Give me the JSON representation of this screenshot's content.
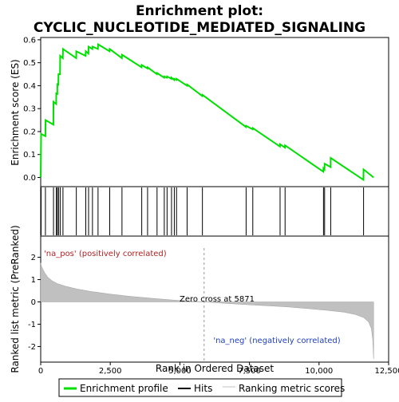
{
  "chart_data": {
    "type": "line",
    "title_line1": "Enrichment plot:",
    "title_line2": "CYCLIC_NUCLEOTIDE_MEDIATED_SIGNALING",
    "es_ylabel": "Enrichment score (ES)",
    "metric_ylabel": "Ranked list metric (PreRanked)",
    "xlabel": "Rank in Ordered Dataset",
    "xlim": [
      0,
      12500
    ],
    "es_ylim": [
      -0.04,
      0.61
    ],
    "metric_ylim": [
      -2.7,
      2.95
    ],
    "x_ticks": [
      0,
      2500,
      5000,
      7500,
      10000,
      12500
    ],
    "x_tick_labels": [
      "0",
      "2,500",
      "5,000",
      "7,500",
      "10,000",
      "12,500"
    ],
    "es_ticks": [
      0.0,
      0.1,
      0.2,
      0.3,
      0.4,
      0.5,
      0.6
    ],
    "es_tick_labels": [
      "0.0",
      "0.1",
      "0.2",
      "0.3",
      "0.4",
      "0.5",
      "0.6"
    ],
    "metric_ticks": [
      2,
      1,
      0,
      -1,
      -2
    ],
    "metric_tick_labels": [
      "2",
      "1",
      "0",
      "-1",
      "-2"
    ],
    "dataset_size": 11960,
    "zero_cross": 5871,
    "zero_cross_label": "Zero cross at 5871",
    "pos_label": "'na_pos' (positively correlated)",
    "neg_label": "'na_neg' (negatively correlated)",
    "legend": [
      "Enrichment profile",
      "Hits",
      "Ranking metric scores"
    ],
    "colors": {
      "enrichment": "#00e000",
      "hits": "#000000",
      "metric_fill": "#c0c0c0",
      "zero_line": "#c0c0c0",
      "bar_red_dark": "#e8001e",
      "bar_red_light": "#ffc8d8",
      "bar_blue_light": "#c8c8ff",
      "bar_blue_dark": "#1010c8"
    },
    "hits": [
      15,
      170,
      460,
      560,
      600,
      640,
      700,
      800,
      1280,
      1620,
      1720,
      1860,
      2060,
      2480,
      2920,
      3630,
      3840,
      4180,
      4440,
      4540,
      4700,
      4800,
      4880,
      5260,
      5810,
      7380,
      7620,
      8600,
      8780,
      10160,
      10200,
      10420,
      11600
    ],
    "es_profile": [
      [
        0,
        0.0
      ],
      [
        15,
        0.19
      ],
      [
        170,
        0.18
      ],
      [
        175,
        0.25
      ],
      [
        455,
        0.23
      ],
      [
        460,
        0.33
      ],
      [
        555,
        0.32
      ],
      [
        560,
        0.37
      ],
      [
        595,
        0.36
      ],
      [
        600,
        0.41
      ],
      [
        635,
        0.4
      ],
      [
        640,
        0.45
      ],
      [
        695,
        0.45
      ],
      [
        700,
        0.53
      ],
      [
        795,
        0.52
      ],
      [
        800,
        0.56
      ],
      [
        1275,
        0.52
      ],
      [
        1280,
        0.55
      ],
      [
        1615,
        0.53
      ],
      [
        1620,
        0.55
      ],
      [
        1715,
        0.54
      ],
      [
        1720,
        0.57
      ],
      [
        1855,
        0.56
      ],
      [
        1860,
        0.57
      ],
      [
        2055,
        0.56
      ],
      [
        2060,
        0.58
      ],
      [
        2475,
        0.55
      ],
      [
        2480,
        0.56
      ],
      [
        2915,
        0.52
      ],
      [
        2920,
        0.535
      ],
      [
        3625,
        0.48
      ],
      [
        3630,
        0.49
      ],
      [
        3835,
        0.475
      ],
      [
        3840,
        0.48
      ],
      [
        4175,
        0.45
      ],
      [
        4180,
        0.455
      ],
      [
        4435,
        0.435
      ],
      [
        4440,
        0.44
      ],
      [
        4535,
        0.435
      ],
      [
        4540,
        0.44
      ],
      [
        4695,
        0.43
      ],
      [
        4700,
        0.435
      ],
      [
        4795,
        0.425
      ],
      [
        4800,
        0.43
      ],
      [
        4875,
        0.425
      ],
      [
        4880,
        0.43
      ],
      [
        5255,
        0.4
      ],
      [
        5260,
        0.405
      ],
      [
        5805,
        0.355
      ],
      [
        5810,
        0.36
      ],
      [
        7375,
        0.22
      ],
      [
        7380,
        0.225
      ],
      [
        7615,
        0.21
      ],
      [
        7620,
        0.215
      ],
      [
        8595,
        0.135
      ],
      [
        8600,
        0.145
      ],
      [
        8775,
        0.13
      ],
      [
        8780,
        0.14
      ],
      [
        10155,
        0.025
      ],
      [
        10160,
        0.04
      ],
      [
        10195,
        0.035
      ],
      [
        10200,
        0.06
      ],
      [
        10415,
        0.045
      ],
      [
        10420,
        0.085
      ],
      [
        11595,
        -0.01
      ],
      [
        11600,
        0.035
      ],
      [
        11960,
        0.0
      ]
    ],
    "metric_profile": [
      [
        0,
        1.75
      ],
      [
        30,
        1.6
      ],
      [
        80,
        1.45
      ],
      [
        150,
        1.3
      ],
      [
        250,
        1.12
      ],
      [
        400,
        0.95
      ],
      [
        600,
        0.82
      ],
      [
        900,
        0.7
      ],
      [
        1300,
        0.58
      ],
      [
        1800,
        0.47
      ],
      [
        2500,
        0.35
      ],
      [
        3200,
        0.25
      ],
      [
        4000,
        0.16
      ],
      [
        4800,
        0.08
      ],
      [
        5871,
        0.0
      ],
      [
        6800,
        -0.08
      ],
      [
        7800,
        -0.15
      ],
      [
        8800,
        -0.22
      ],
      [
        9600,
        -0.3
      ],
      [
        10300,
        -0.38
      ],
      [
        10900,
        -0.46
      ],
      [
        11300,
        -0.56
      ],
      [
        11600,
        -0.7
      ],
      [
        11780,
        -0.9
      ],
      [
        11880,
        -1.2
      ],
      [
        11930,
        -1.7
      ],
      [
        11960,
        -2.55
      ]
    ]
  }
}
